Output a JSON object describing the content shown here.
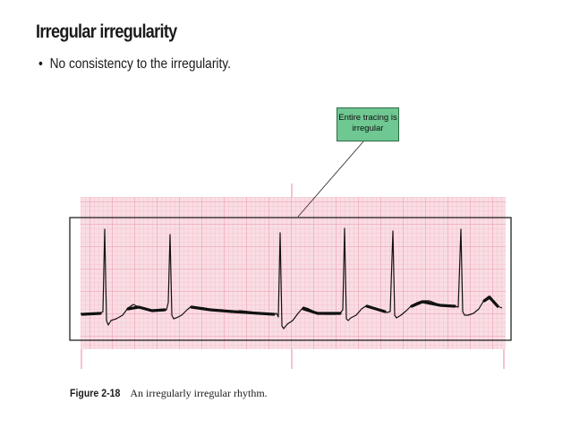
{
  "slide": {
    "title": "Irregular irregularity",
    "bullets": [
      {
        "text": "No consistency to the irregularity."
      }
    ]
  },
  "figure": {
    "callout_text_line1": "Entire tracing is",
    "callout_text_line2": "irregular",
    "caption_label": "Figure 2-18",
    "caption_text": "An irregularly irregular rhythm.",
    "colors": {
      "grid_paper": "#f9dde4",
      "grid_minor": "#f3aebd",
      "grid_major": "#e9879c",
      "trace": "#111111",
      "callout_fill": "#6fc792"
    }
  }
}
